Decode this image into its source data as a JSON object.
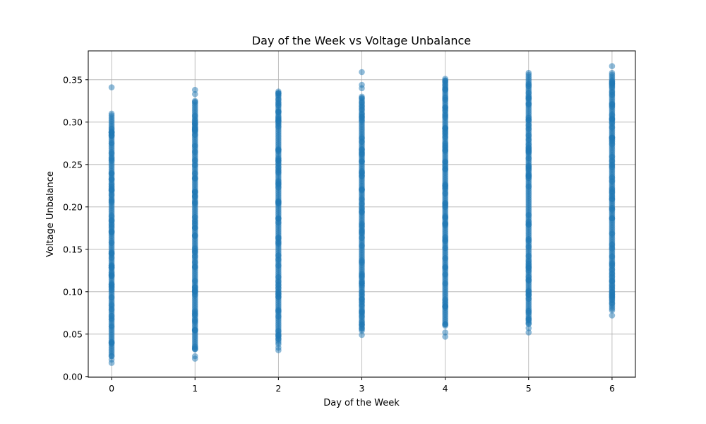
{
  "chart_data": {
    "type": "scatter",
    "title": "Day of the Week vs Voltage Unbalance",
    "xlabel": "Day of the Week",
    "ylabel": "Voltage Unbalance",
    "xlim": [
      -0.28,
      6.28
    ],
    "ylim": [
      -0.001,
      0.384
    ],
    "x_ticks": [
      0,
      1,
      2,
      3,
      4,
      5,
      6
    ],
    "x_tick_labels": [
      "0",
      "1",
      "2",
      "3",
      "4",
      "5",
      "6"
    ],
    "y_ticks": [
      0.0,
      0.05,
      0.1,
      0.15,
      0.2,
      0.25,
      0.3,
      0.35
    ],
    "y_tick_labels": [
      "0.00",
      "0.05",
      "0.10",
      "0.15",
      "0.20",
      "0.25",
      "0.30",
      "0.35"
    ],
    "grid": true,
    "marker_color": "#1f77b4",
    "marker_alpha": 0.5,
    "series": [
      {
        "name": "Day 0",
        "x": 0,
        "dense_range": [
          0.024,
          0.31
        ],
        "outliers": [
          0.016,
          0.02,
          0.341
        ]
      },
      {
        "name": "Day 1",
        "x": 1,
        "dense_range": [
          0.032,
          0.325
        ],
        "outliers": [
          0.021,
          0.024,
          0.333,
          0.338
        ]
      },
      {
        "name": "Day 2",
        "x": 2,
        "dense_range": [
          0.038,
          0.336
        ],
        "outliers": [
          0.031,
          0.034
        ]
      },
      {
        "name": "Day 3",
        "x": 3,
        "dense_range": [
          0.054,
          0.33
        ],
        "outliers": [
          0.049,
          0.34,
          0.344,
          0.359
        ]
      },
      {
        "name": "Day 4",
        "x": 4,
        "dense_range": [
          0.06,
          0.351
        ],
        "outliers": [
          0.047,
          0.052
        ]
      },
      {
        "name": "Day 5",
        "x": 5,
        "dense_range": [
          0.062,
          0.358
        ],
        "outliers": [
          0.052,
          0.057
        ]
      },
      {
        "name": "Day 6",
        "x": 6,
        "dense_range": [
          0.078,
          0.358
        ],
        "outliers": [
          0.072,
          0.366
        ]
      }
    ]
  }
}
